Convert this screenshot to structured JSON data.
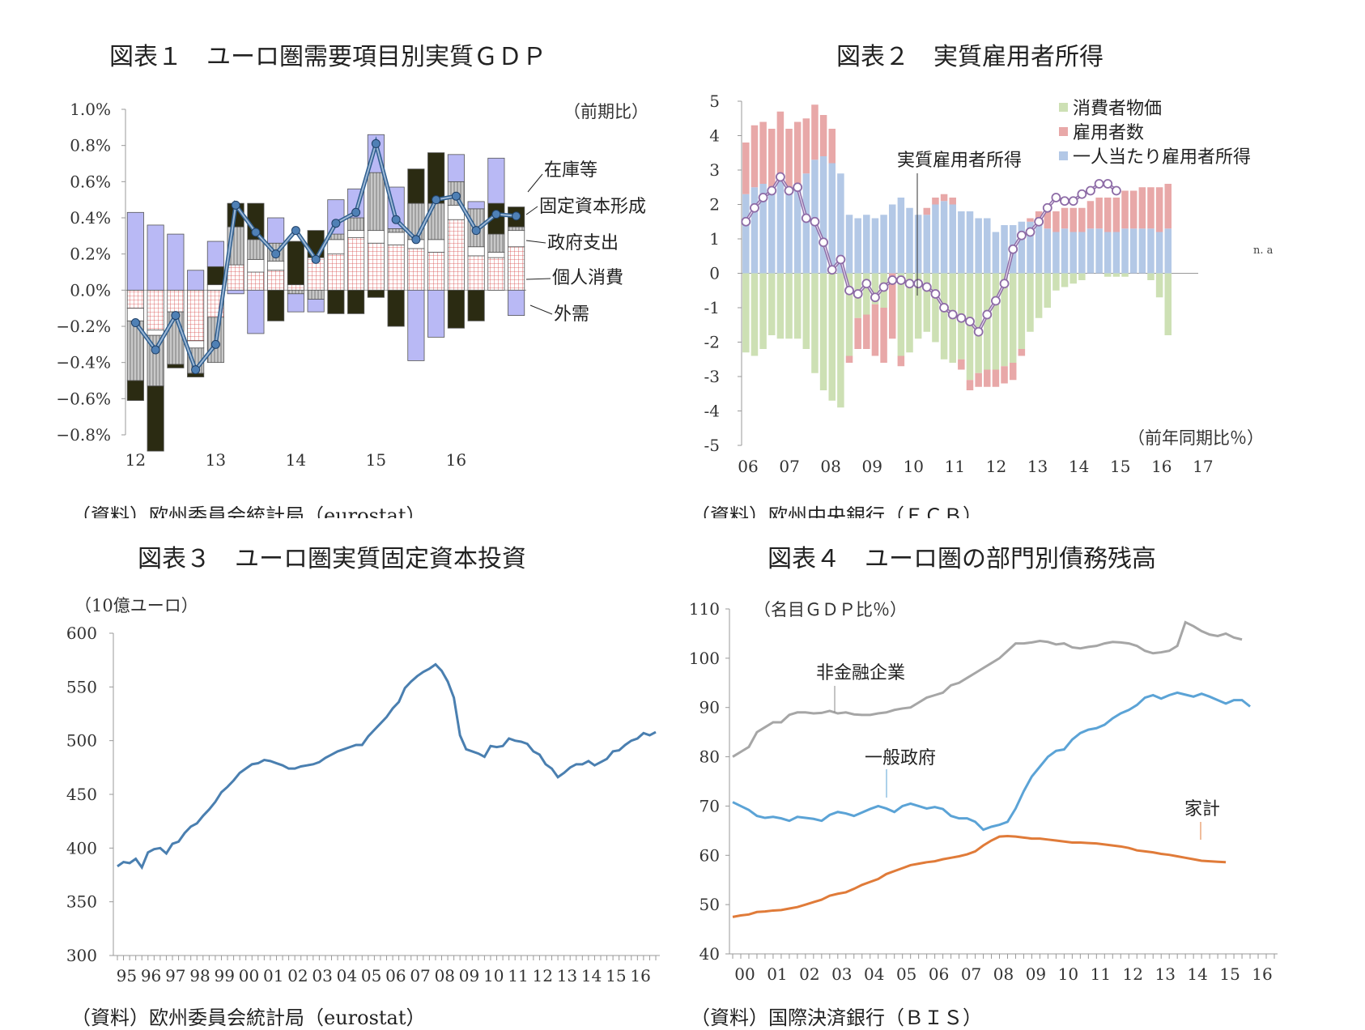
{
  "chart_data": [
    {
      "id": "c1",
      "type": "bar",
      "title": "図表１　ユーロ圏需要項目別実質ＧＤＰ",
      "unit_note": "（前期比）",
      "source": "（資料）欧州委員会統計局（eurostat）",
      "ylim": [
        -0.8,
        1.0
      ],
      "yticks": [
        "1.0%",
        "0.8%",
        "0.6%",
        "0.4%",
        "0.2%",
        "0.0%",
        "−0.2%",
        "−0.4%",
        "−0.6%",
        "−0.8%"
      ],
      "year_labels": [
        "12",
        "13",
        "14",
        "15",
        "16"
      ],
      "stacked": true,
      "series": [
        {
          "name": "個人消費",
          "color": "#f2c4c4",
          "values": [
            -0.1,
            -0.22,
            -0.12,
            -0.28,
            -0.15,
            0.14,
            0.1,
            0.11,
            0.03,
            0.18,
            0.2,
            0.29,
            0.26,
            0.25,
            0.23,
            0.21,
            0.39,
            0.19,
            0.18,
            0.24
          ]
        },
        {
          "name": "政府支出",
          "color": "#ffffff",
          "values": [
            -0.07,
            -0.03,
            0.0,
            -0.04,
            0.03,
            0.0,
            0.07,
            0.05,
            0.0,
            0.0,
            0.08,
            0.04,
            0.07,
            0.07,
            0.05,
            0.07,
            0.08,
            0.05,
            0.03,
            0.09
          ]
        },
        {
          "name": "固定資本形成",
          "color": "#c0c0c0",
          "values": [
            -0.33,
            -0.28,
            -0.29,
            -0.14,
            -0.25,
            0.21,
            0.11,
            0.1,
            -0.02,
            -0.05,
            0.03,
            0.07,
            0.32,
            0.02,
            0.2,
            0.2,
            0.13,
            0.21,
            0.1,
            0.02
          ]
        },
        {
          "name": "在庫等",
          "color": "#2b2b12",
          "values": [
            -0.11,
            -0.36,
            -0.02,
            -0.02,
            0.1,
            0.13,
            0.2,
            -0.17,
            0.24,
            0.15,
            -0.13,
            -0.13,
            -0.04,
            -0.2,
            0.19,
            0.28,
            -0.21,
            -0.17,
            0.17,
            0.11
          ]
        },
        {
          "name": "外需",
          "color": "#b9b9f5",
          "values": [
            0.43,
            0.36,
            0.31,
            0.11,
            0.14,
            -0.02,
            -0.24,
            0.14,
            -0.1,
            -0.07,
            0.19,
            0.16,
            0.21,
            0.23,
            -0.39,
            -0.26,
            0.15,
            0.04,
            0.25,
            -0.14
          ]
        }
      ],
      "line": {
        "name": "GDP",
        "color": "#2f5e8e",
        "values": [
          -0.18,
          -0.33,
          -0.14,
          -0.44,
          -0.3,
          0.47,
          0.32,
          0.2,
          0.33,
          0.17,
          0.37,
          0.43,
          0.81,
          0.39,
          0.28,
          0.5,
          0.52,
          0.33,
          0.42,
          0.41
        ]
      }
    },
    {
      "id": "c2",
      "type": "bar",
      "title": "図表２　実質雇用者所得",
      "unit_note": "（前年同期比％）",
      "source": "（資料）欧州中央銀行（ＥＣＢ）",
      "ylim": [
        -5,
        5
      ],
      "yticks": [
        "5",
        "4",
        "3",
        "2",
        "1",
        "0",
        "-1",
        "-2",
        "-3",
        "-4",
        "-5"
      ],
      "year_labels": [
        "06",
        "07",
        "08",
        "09",
        "10",
        "11",
        "12",
        "13",
        "14",
        "15",
        "16",
        "17"
      ],
      "stacked": true,
      "series": [
        {
          "name": "一人当たり雇用者所得",
          "color": "#b3c8e6",
          "values": [
            2.3,
            2.5,
            2.6,
            2.5,
            2.7,
            2.5,
            2.6,
            2.9,
            3.3,
            3.4,
            3.2,
            2.9,
            1.7,
            1.6,
            1.7,
            1.6,
            1.7,
            2.0,
            2.2,
            1.9,
            1.7,
            1.7,
            2.0,
            2.1,
            2.0,
            1.8,
            1.8,
            1.6,
            1.6,
            1.2,
            1.4,
            1.4,
            1.5,
            1.5,
            1.5,
            1.3,
            1.2,
            1.3,
            1.2,
            1.2,
            1.3,
            1.3,
            1.2,
            1.2,
            1.3,
            1.3,
            1.3,
            1.3,
            1.2,
            1.3
          ]
        },
        {
          "name": "雇用者数",
          "color": "#e8a8a8",
          "values": [
            1.5,
            1.8,
            1.8,
            1.7,
            2.0,
            1.7,
            1.8,
            1.6,
            1.6,
            1.2,
            1.0,
            0.0,
            0.0,
            0.0,
            0.0,
            0.0,
            0.0,
            0.0,
            0.0,
            0.0,
            0.0,
            0.2,
            0.2,
            0.2,
            0.2,
            0.0,
            0.0,
            0.0,
            0.0,
            0.0,
            0.0,
            0.0,
            0.0,
            0.1,
            0.3,
            0.5,
            0.6,
            0.6,
            0.7,
            0.7,
            0.8,
            0.9,
            1.0,
            1.0,
            1.1,
            1.1,
            1.2,
            1.2,
            1.3,
            1.3
          ]
        },
        {
          "name": "消費者物価",
          "color": "#cde0b4",
          "values": [
            -2.3,
            -2.4,
            -2.2,
            -1.8,
            -1.9,
            -1.9,
            -1.9,
            -2.2,
            -2.9,
            -3.4,
            -3.7,
            -3.9,
            -2.4,
            -1.3,
            -1.2,
            -0.9,
            -1.0,
            0.0,
            -2.4,
            -2.3,
            -1.9,
            -1.7,
            -2.0,
            -2.5,
            -2.6,
            -2.5,
            -3.1,
            -2.9,
            -2.8,
            -2.8,
            -2.7,
            -2.6,
            -2.2,
            -1.7,
            -1.3,
            -1.0,
            -0.5,
            -0.4,
            -0.3,
            -0.2,
            0.0,
            0.0,
            -0.1,
            -0.1,
            -0.1,
            0.0,
            0.0,
            -0.2,
            -0.7,
            -1.8
          ]
        },
        {
          "name": "雇用者数（マイナス）",
          "color": "#e8a8a8",
          "values": [
            0,
            0,
            0,
            0,
            0,
            0,
            0,
            0,
            0,
            0,
            0,
            0,
            -0.2,
            -0.9,
            -1.0,
            -1.5,
            -1.6,
            -1.9,
            -0.3,
            0,
            0,
            0,
            0,
            0,
            0,
            -0.3,
            -0.3,
            -0.4,
            -0.5,
            -0.5,
            -0.5,
            -0.5,
            -0.2,
            0,
            0,
            0,
            0,
            0,
            0,
            0,
            0,
            0,
            0,
            0,
            0,
            0,
            0,
            0,
            0,
            0
          ]
        }
      ],
      "line": {
        "name": "実質雇用者所得",
        "color": "#8d6ba6",
        "values": [
          1.5,
          1.9,
          2.2,
          2.4,
          2.8,
          2.4,
          2.5,
          1.6,
          1.5,
          0.9,
          0.1,
          0.4,
          -0.5,
          -0.6,
          -0.3,
          -0.7,
          -0.4,
          -0.2,
          -0.2,
          -0.3,
          -0.3,
          -0.4,
          -0.6,
          -1.0,
          -1.2,
          -1.3,
          -1.4,
          -1.7,
          -1.2,
          -0.8,
          -0.3,
          0.7,
          1.1,
          1.2,
          1.5,
          1.9,
          2.2,
          2.1,
          2.1,
          2.3,
          2.4,
          2.6,
          2.6,
          2.4,
          null,
          null,
          null,
          null,
          null,
          null
        ]
      },
      "na_label": "n. a",
      "legend": [
        "消費者物価",
        "雇用者数",
        "一人当たり雇用者所得"
      ]
    },
    {
      "id": "c3",
      "type": "line",
      "title": "図表３　ユーロ圏実質固定資本投資",
      "unit_note": "（10億ユーロ）",
      "source": "（資料）欧州委員会統計局（eurostat）",
      "ylim": [
        300,
        600
      ],
      "yticks": [
        "600",
        "550",
        "500",
        "450",
        "400",
        "350",
        "300"
      ],
      "year_labels": [
        "95",
        "96",
        "97",
        "98",
        "99",
        "00",
        "01",
        "02",
        "03",
        "04",
        "05",
        "06",
        "07",
        "08",
        "09",
        "10",
        "11",
        "12",
        "13",
        "14",
        "15",
        "16"
      ],
      "series": [
        {
          "name": "",
          "color": "#4a7fb0",
          "values": [
            383,
            387,
            386,
            390,
            382,
            396,
            399,
            400,
            395,
            404,
            406,
            414,
            420,
            423,
            430,
            436,
            443,
            452,
            457,
            463,
            470,
            474,
            478,
            479,
            482,
            481,
            479,
            477,
            474,
            474,
            476,
            477,
            478,
            480,
            484,
            487,
            490,
            492,
            494,
            496,
            496,
            504,
            510,
            516,
            522,
            530,
            536,
            549,
            555,
            560,
            564,
            567,
            571,
            565,
            555,
            540,
            505,
            492,
            490,
            488,
            485,
            495,
            494,
            495,
            502,
            500,
            499,
            497,
            490,
            487,
            478,
            474,
            466,
            470,
            475,
            478,
            478,
            481,
            477,
            480,
            483,
            490,
            491,
            496,
            500,
            502,
            507,
            505,
            508
          ]
        }
      ]
    },
    {
      "id": "c4",
      "type": "line",
      "title": "図表４　ユーロ圏の部門別債務残高",
      "unit_note": "（名目ＧＤＰ比％）",
      "source": "（資料）国際決済銀行（ＢＩＳ）",
      "ylim": [
        40,
        110
      ],
      "yticks": [
        "110",
        "100",
        "90",
        "80",
        "70",
        "60",
        "50",
        "40"
      ],
      "year_labels": [
        "00",
        "01",
        "02",
        "03",
        "04",
        "05",
        "06",
        "07",
        "08",
        "09",
        "10",
        "11",
        "12",
        "13",
        "14",
        "15",
        "16"
      ],
      "series": [
        {
          "name": "非金融企業",
          "color": "#a6a6a6",
          "values": [
            80,
            81,
            82,
            85,
            86,
            87,
            87,
            88.5,
            89,
            89,
            88.8,
            88.9,
            89.3,
            88.8,
            89,
            88.6,
            88.5,
            88.5,
            88.8,
            89,
            89.5,
            89.8,
            90,
            91,
            92,
            92.5,
            93,
            94.5,
            95,
            96,
            97,
            98,
            99,
            100,
            101.5,
            103,
            103,
            103.2,
            103.5,
            103.3,
            102.8,
            103,
            102.2,
            102,
            102.3,
            102.5,
            103,
            103.3,
            103.2,
            103,
            102.5,
            101.5,
            101,
            101.2,
            101.5,
            102.5,
            107.3,
            106.5,
            105.5,
            104.8,
            104.5,
            105,
            104.2,
            103.8
          ]
        },
        {
          "name": "一般政府",
          "color": "#5ba3d6",
          "values": [
            70.8,
            70,
            69.2,
            68,
            67.6,
            67.8,
            67.5,
            67,
            67.8,
            67.6,
            67.4,
            67,
            68.2,
            68.8,
            68.5,
            68,
            68.7,
            69.4,
            70,
            69.5,
            68.8,
            70,
            70.5,
            70,
            69.5,
            69.8,
            69.4,
            68,
            67.5,
            67.5,
            66.8,
            65.2,
            65.8,
            66.2,
            66.8,
            69.5,
            73,
            76,
            78,
            80,
            81.2,
            81.5,
            83.5,
            84.8,
            85.5,
            85.8,
            86.5,
            87.8,
            88.8,
            89.5,
            90.5,
            92,
            92.5,
            91.8,
            92.5,
            93,
            92.6,
            92.2,
            92.8,
            92.2,
            91.5,
            90.8,
            91.5,
            91.5,
            90.2
          ]
        },
        {
          "name": "家計",
          "color": "#e07b39",
          "values": [
            47.5,
            47.8,
            48,
            48.5,
            48.6,
            48.8,
            48.9,
            49.2,
            49.5,
            50,
            50.5,
            51,
            51.8,
            52.2,
            52.5,
            53.2,
            54,
            54.6,
            55.2,
            56.2,
            56.8,
            57.4,
            58,
            58.3,
            58.6,
            58.8,
            59.2,
            59.5,
            59.8,
            60.2,
            60.8,
            62,
            63,
            63.8,
            63.9,
            63.8,
            63.6,
            63.4,
            63.4,
            63.2,
            63,
            62.8,
            62.6,
            62.6,
            62.5,
            62.4,
            62.2,
            62,
            61.8,
            61.5,
            61,
            60.8,
            60.6,
            60.3,
            60.1,
            59.8,
            59.5,
            59.2,
            58.9,
            58.8,
            58.7,
            58.6
          ]
        }
      ]
    }
  ],
  "labels": {
    "c1": {
      "inventory": "在庫等",
      "gfcf": "固定資本形成",
      "gov": "政府支出",
      "pc": "個人消費",
      "net": "外需"
    },
    "c2": {
      "real_income": "実質雇用者所得"
    },
    "c4": {
      "corp": "非金融企業",
      "gov": "一般政府",
      "hh": "家計"
    }
  }
}
